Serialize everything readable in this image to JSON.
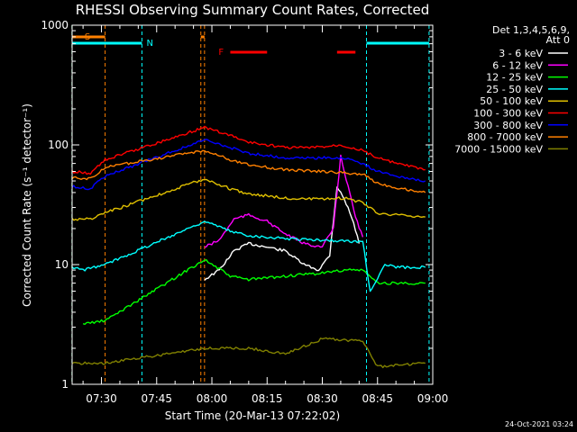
{
  "chart_data": {
    "type": "line",
    "title": "RHESSI Observing Summary Count Rates, Corrected",
    "xlabel": "Start Time (20-Mar-13 07:22:02)",
    "ylabel": "Corrected Count Rate (s⁻¹ detector⁻¹)",
    "y_scale": "log",
    "ylim": [
      1,
      1000
    ],
    "xlim": [
      "07:22:02",
      "09:00:00"
    ],
    "x_ticks": [
      "07:30",
      "07:45",
      "08:00",
      "08:15",
      "08:30",
      "08:45",
      "09:00"
    ],
    "y_ticks": [
      "1",
      "10",
      "100",
      "1000"
    ],
    "legend_title": [
      "Det 1,3,4,5,6,9,",
      "Att 0"
    ],
    "legend_position": "right",
    "date_stamp": "24-Oct-2021 03:24",
    "flags": {
      "saa_label": "S",
      "saa_color": "#ff8000",
      "night_label": "N",
      "night_color": "#00ffff",
      "flare_label": "F",
      "flare_color": "#ff0000",
      "saa_intervals": [
        [
          "07:22",
          "07:31"
        ],
        [
          "07:57",
          "07:58"
        ]
      ],
      "night_intervals": [
        [
          "07:22",
          "07:41"
        ],
        [
          "08:42",
          "08:59"
        ]
      ],
      "flare_intervals": [
        [
          "08:05",
          "08:15"
        ],
        [
          "08:34",
          "08:39"
        ]
      ]
    },
    "series": [
      {
        "name": "3 - 6 keV",
        "color": "#ffffff",
        "points": [
          [
            "07:58",
            7.5
          ],
          [
            "08:02",
            9
          ],
          [
            "08:06",
            13
          ],
          [
            "08:10",
            15
          ],
          [
            "08:15",
            14
          ],
          [
            "08:20",
            13
          ],
          [
            "08:25",
            10
          ],
          [
            "08:29",
            9
          ],
          [
            "08:32",
            12
          ],
          [
            "08:34",
            45
          ],
          [
            "08:36",
            35
          ],
          [
            "08:38",
            25
          ],
          [
            "08:40",
            15
          ]
        ]
      },
      {
        "name": "6 - 12 keV",
        "color": "#ff00ff",
        "points": [
          [
            "07:58",
            14
          ],
          [
            "08:02",
            16
          ],
          [
            "08:06",
            24
          ],
          [
            "08:10",
            26
          ],
          [
            "08:15",
            23
          ],
          [
            "08:20",
            18
          ],
          [
            "08:25",
            15
          ],
          [
            "08:30",
            14
          ],
          [
            "08:33",
            20
          ],
          [
            "08:35",
            80
          ],
          [
            "08:37",
            45
          ],
          [
            "08:39",
            25
          ],
          [
            "08:41",
            17
          ]
        ]
      },
      {
        "name": "12 - 25 keV",
        "color": "#00ff00",
        "points": [
          [
            "07:25",
            3.2
          ],
          [
            "07:31",
            3.4
          ],
          [
            "07:58",
            11
          ],
          [
            "08:05",
            8
          ],
          [
            "08:10",
            7.5
          ],
          [
            "08:20",
            8
          ],
          [
            "08:30",
            8.5
          ],
          [
            "08:36",
            9
          ],
          [
            "08:41",
            9
          ],
          [
            "08:45",
            7
          ],
          [
            "08:50",
            7
          ],
          [
            "08:58",
            7
          ]
        ]
      },
      {
        "name": "25 - 50 keV",
        "color": "#00ffff",
        "points": [
          [
            "07:22",
            9.5
          ],
          [
            "07:25",
            9
          ],
          [
            "07:31",
            10
          ],
          [
            "07:58",
            23
          ],
          [
            "08:05",
            19
          ],
          [
            "08:10",
            17.5
          ],
          [
            "08:20",
            16.5
          ],
          [
            "08:30",
            16
          ],
          [
            "08:41",
            15.5
          ],
          [
            "08:43",
            6
          ],
          [
            "08:47",
            10
          ],
          [
            "08:50",
            9.5
          ],
          [
            "08:58",
            9.5
          ]
        ]
      },
      {
        "name": "50 - 100 keV",
        "color": "#e0c000",
        "points": [
          [
            "07:22",
            24
          ],
          [
            "07:27",
            24
          ],
          [
            "07:31",
            27
          ],
          [
            "07:58",
            52
          ],
          [
            "08:05",
            43
          ],
          [
            "08:10",
            39
          ],
          [
            "08:20",
            36
          ],
          [
            "08:30",
            35
          ],
          [
            "08:36",
            36
          ],
          [
            "08:41",
            33
          ],
          [
            "08:45",
            27
          ],
          [
            "08:50",
            26
          ],
          [
            "08:58",
            25
          ]
        ]
      },
      {
        "name": "100 - 300 keV",
        "color": "#ff0000",
        "points": [
          [
            "07:22",
            60
          ],
          [
            "07:27",
            58
          ],
          [
            "07:31",
            75
          ],
          [
            "07:58",
            140
          ],
          [
            "08:05",
            120
          ],
          [
            "08:10",
            105
          ],
          [
            "08:20",
            95
          ],
          [
            "08:28",
            95
          ],
          [
            "08:35",
            100
          ],
          [
            "08:41",
            90
          ],
          [
            "08:45",
            78
          ],
          [
            "08:50",
            70
          ],
          [
            "08:58",
            62
          ]
        ]
      },
      {
        "name": "300 - 800 keV",
        "color": "#0000ff",
        "points": [
          [
            "07:22",
            45
          ],
          [
            "07:27",
            43
          ],
          [
            "07:31",
            55
          ],
          [
            "07:58",
            110
          ],
          [
            "08:05",
            95
          ],
          [
            "08:10",
            85
          ],
          [
            "08:20",
            78
          ],
          [
            "08:30",
            78
          ],
          [
            "08:36",
            78
          ],
          [
            "08:41",
            70
          ],
          [
            "08:45",
            60
          ],
          [
            "08:50",
            55
          ],
          [
            "08:58",
            50
          ]
        ]
      },
      {
        "name": "800 - 7000 keV",
        "color": "#ff8000",
        "points": [
          [
            "07:22",
            53
          ],
          [
            "07:27",
            52
          ],
          [
            "07:31",
            65
          ],
          [
            "07:58",
            90
          ],
          [
            "08:05",
            75
          ],
          [
            "08:10",
            68
          ],
          [
            "08:20",
            62
          ],
          [
            "08:30",
            60
          ],
          [
            "08:41",
            57
          ],
          [
            "08:45",
            48
          ],
          [
            "08:50",
            44
          ],
          [
            "08:58",
            40
          ]
        ]
      },
      {
        "name": "7000 - 15000 keV",
        "color": "#808000",
        "points": [
          [
            "07:22",
            1.5
          ],
          [
            "07:31",
            1.5
          ],
          [
            "07:58",
            2
          ],
          [
            "08:10",
            2
          ],
          [
            "08:20",
            1.8
          ],
          [
            "08:30",
            2.4
          ],
          [
            "08:41",
            2.3
          ],
          [
            "08:45",
            1.4
          ],
          [
            "08:58",
            1.5
          ]
        ]
      }
    ]
  }
}
